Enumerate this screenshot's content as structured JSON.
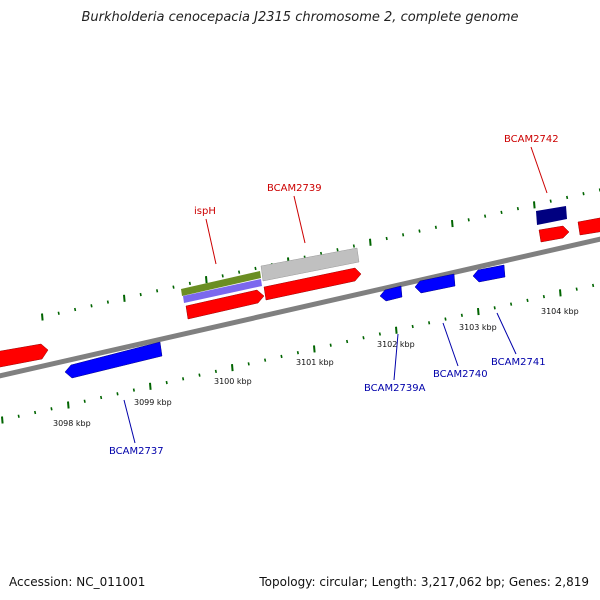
{
  "title": "Burkholderia cenocepacia J2315 chromosome 2, complete genome",
  "footer": {
    "accession": "Accession: NC_011001",
    "summary": "Topology: circular; Length: 3,217,062 bp; Genes: 2,819"
  },
  "colors": {
    "forward": "#ff0000",
    "reverse": "#0000ff",
    "dark_gene": "#000080",
    "green_feature": "#6b8e23",
    "purple_feature": "#7b68ee",
    "grey_feature": "#c0c0c0",
    "axis": "#808080",
    "tick": "#006400",
    "forward_label": "#cc0000",
    "reverse_label": "#0000aa"
  },
  "ticks": {
    "unit": "kbp",
    "labels": [
      "3098 kbp",
      "3099 kbp",
      "3100 kbp",
      "3101 kbp",
      "3102 kbp",
      "3103 kbp",
      "3104 kbp"
    ]
  },
  "genes": {
    "forward_labels": [
      "ispH",
      "BCAM2739",
      "BCAM2742"
    ],
    "reverse_labels": [
      "BCAM2737",
      "BCAM2739A",
      "BCAM2740",
      "BCAM2741"
    ]
  }
}
